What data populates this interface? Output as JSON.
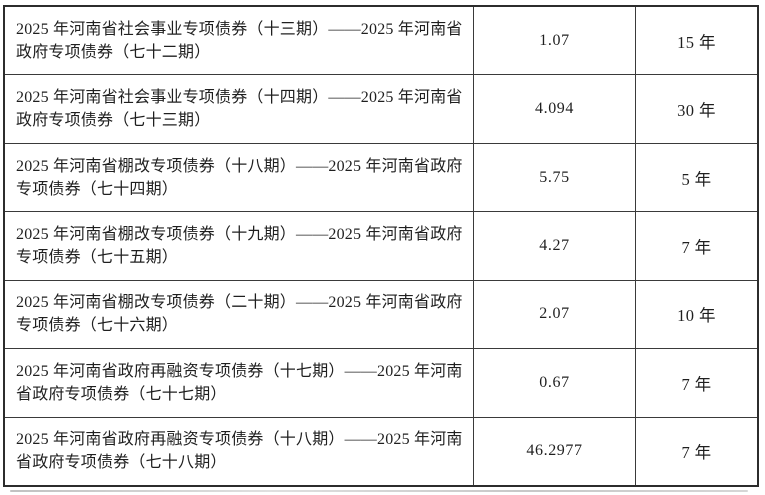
{
  "table": {
    "rows": [
      {
        "name": "2025 年河南省社会事业专项债券（十三期）——2025 年河南省\n政府专项债券（七十二期）",
        "amount": "1.07",
        "term": "15 年"
      },
      {
        "name": "2025 年河南省社会事业专项债券（十四期）——2025 年河南省\n政府专项债券（七十三期）",
        "amount": "4.094",
        "term": "30 年"
      },
      {
        "name": "2025 年河南省棚改专项债券（十八期）——2025 年河南省政府\n专项债券（七十四期）",
        "amount": "5.75",
        "term": "5 年"
      },
      {
        "name": "2025 年河南省棚改专项债券（十九期）——2025 年河南省政府\n专项债券（七十五期）",
        "amount": "4.27",
        "term": "7 年"
      },
      {
        "name": "2025 年河南省棚改专项债券（二十期）——2025 年河南省政府\n专项债券（七十六期）",
        "amount": "2.07",
        "term": "10 年"
      },
      {
        "name": "2025 年河南省政府再融资专项债券（十七期）——2025 年河南\n省政府专项债券（七十七期）",
        "amount": "0.67",
        "term": "7 年"
      },
      {
        "name": "2025 年河南省政府再融资专项债券（十八期）——2025 年河南\n省政府专项债券（七十八期）",
        "amount": "46.2977",
        "term": "7 年"
      }
    ]
  },
  "colors": {
    "border": "#3a3a3a",
    "text": "#1f1f1f",
    "background": "#ffffff"
  }
}
